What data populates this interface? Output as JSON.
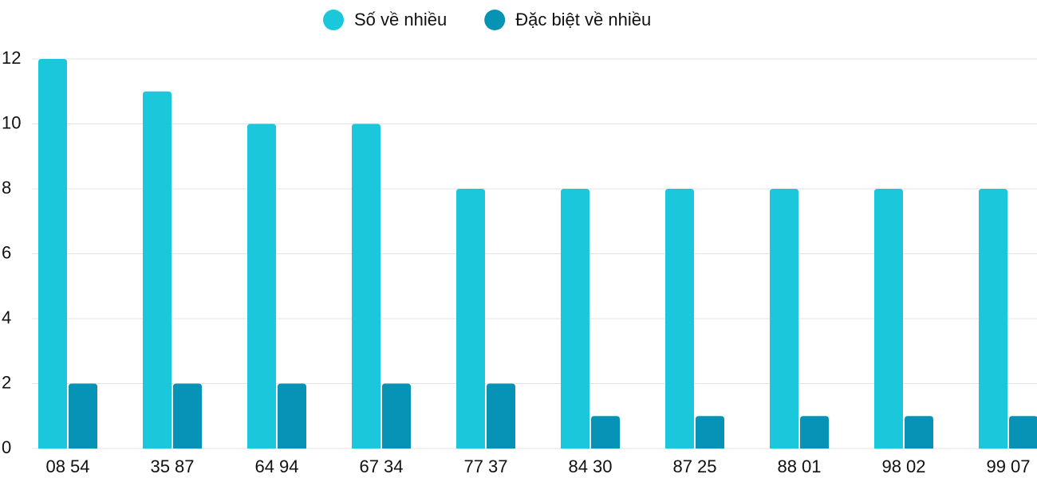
{
  "chart_data": {
    "type": "bar",
    "categories": [
      "08 54",
      "35 87",
      "64 94",
      "67 34",
      "77 37",
      "84 30",
      "87 25",
      "88 01",
      "98 02",
      "99 07"
    ],
    "series": [
      {
        "name": "Số về nhiều",
        "color": "#1bc8db",
        "values": [
          12,
          11,
          10,
          10,
          8,
          8,
          8,
          8,
          8,
          8
        ]
      },
      {
        "name": "Đặc biệt về nhiều",
        "color": "#0793b6",
        "values": [
          2,
          2,
          2,
          2,
          2,
          1,
          1,
          1,
          1,
          1
        ]
      }
    ],
    "ylim": [
      0,
      12
    ],
    "yticks": [
      0,
      2,
      4,
      6,
      8,
      10,
      12
    ],
    "grid": true,
    "legend": "top"
  }
}
